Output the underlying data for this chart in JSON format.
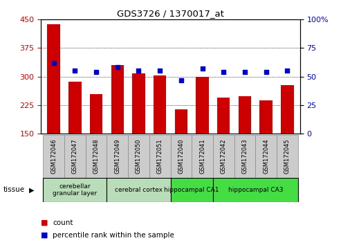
{
  "title": "GDS3726 / 1370017_at",
  "samples": [
    "GSM172046",
    "GSM172047",
    "GSM172048",
    "GSM172049",
    "GSM172050",
    "GSM172051",
    "GSM172040",
    "GSM172041",
    "GSM172042",
    "GSM172043",
    "GSM172044",
    "GSM172045"
  ],
  "counts": [
    437,
    287,
    253,
    330,
    308,
    303,
    213,
    300,
    245,
    248,
    238,
    278
  ],
  "percentiles": [
    62,
    55,
    54,
    58,
    55,
    55,
    47,
    57,
    54,
    54,
    54,
    55
  ],
  "ylim_left": [
    150,
    450
  ],
  "ylim_right": [
    0,
    100
  ],
  "yticks_left": [
    150,
    225,
    300,
    375,
    450
  ],
  "yticks_right": [
    0,
    25,
    50,
    75,
    100
  ],
  "bar_color": "#cc0000",
  "dot_color": "#0000cc",
  "tissue_groups": [
    {
      "label": "cerebellar\ngranular layer",
      "indices": [
        0,
        1,
        2
      ],
      "color": "#b8ddb8"
    },
    {
      "label": "cerebral cortex",
      "indices": [
        3,
        4,
        5
      ],
      "color": "#b8ddb8"
    },
    {
      "label": "hippocampal CA1",
      "indices": [
        6,
        7
      ],
      "color": "#44dd44"
    },
    {
      "label": "hippocampal CA3",
      "indices": [
        8,
        9,
        10,
        11
      ],
      "color": "#44dd44"
    }
  ],
  "tissue_label": "tissue",
  "legend_count_label": "count",
  "legend_pct_label": "percentile rank within the sample",
  "background_color": "#ffffff",
  "tick_label_color_left": "#cc0000",
  "tick_label_color_right": "#0000cc",
  "sample_box_color": "#cccccc",
  "sample_box_border": "#888888"
}
